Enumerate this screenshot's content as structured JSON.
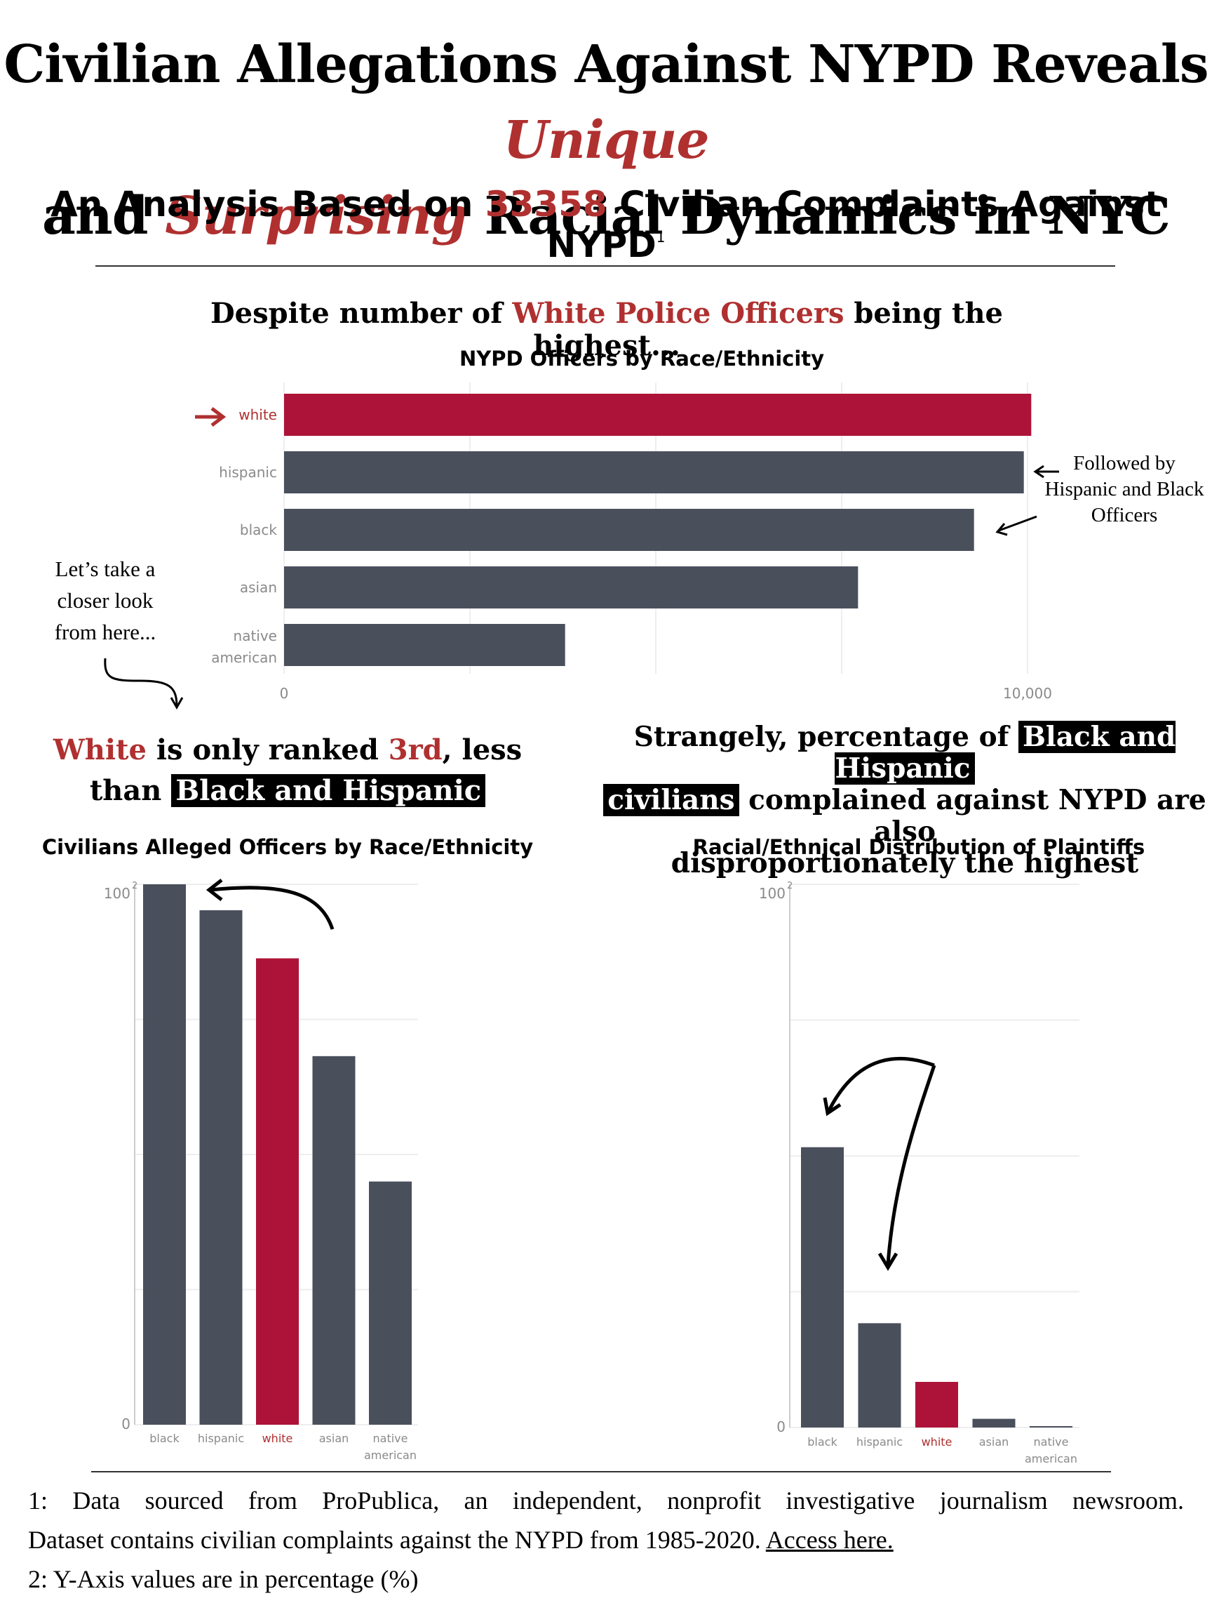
{
  "header": {
    "title_line1_a": "Civilian Allegations Against NYPD Reveals ",
    "title_line1_b": "Unique",
    "title_line2_a": "and ",
    "title_line2_b": "Surprising",
    "title_line2_c": " Racial Dynamics in NYC",
    "subtitle_a": "An Analysis Based on ",
    "subtitle_count": "33358",
    "subtitle_b": " Civilian Complaints Against NYPD",
    "subtitle_sup": "1"
  },
  "section1": {
    "headline_a": "Despite number of ",
    "headline_b": "White Police Officers",
    "headline_c": " being the highest...",
    "annot_right": [
      "Followed by",
      "Hispanic and Black",
      "Officers"
    ],
    "annot_left": [
      "Let’s take a",
      "closer look",
      "from here..."
    ]
  },
  "section2": {
    "headline_a": "White",
    "headline_b": " is only ranked ",
    "headline_c": "3rd",
    "headline_d": ", less",
    "headline_e": "than ",
    "headline_f": "Black and Hispanic"
  },
  "section3": {
    "headline_a": "Strangely, percentage of ",
    "headline_b": "Black and Hispanic",
    "headline_c": "civilians",
    "headline_d": " complained against NYPD are also",
    "headline_e": "disproportionately the highest"
  },
  "colors": {
    "highlight": "#ad1338",
    "bar": "#4a4f5c",
    "accent_text": "#b03030"
  },
  "chart_data": [
    {
      "type": "bar",
      "orientation": "horizontal",
      "title": "NYPD Officers by Race/Ethnicity",
      "categories": [
        "white",
        "hispanic",
        "black",
        "asian",
        "native american"
      ],
      "values": [
        10050,
        9950,
        9280,
        7720,
        3780
      ],
      "highlight": "white",
      "xlim": [
        0,
        10000
      ],
      "tick_labels": [
        "0",
        "10,000"
      ]
    },
    {
      "type": "bar",
      "title": "Civilians Alleged Officers by Race/Ethnicity",
      "categories": [
        "black",
        "hispanic",
        "white",
        "asian",
        "native american"
      ],
      "values": [
        100,
        95.2,
        86.3,
        68.2,
        45.0
      ],
      "highlight": "white",
      "ylim": [
        0,
        100
      ],
      "tick_labels": [
        "0",
        "100"
      ],
      "tick_sup": "2"
    },
    {
      "type": "bar",
      "title": "Racial/Ethnical Distribution of Plaintiffs",
      "categories": [
        "black",
        "hispanic",
        "white",
        "asian",
        "native american"
      ],
      "values": [
        51.6,
        19.2,
        8.4,
        1.6,
        0.2
      ],
      "highlight": "white",
      "ylim": [
        0,
        100
      ],
      "tick_labels": [
        "0",
        "100"
      ],
      "tick_sup": "2"
    }
  ],
  "footnotes": {
    "note1_a": "1: Data sourced from ProPublica, an independent, nonprofit investigative journalism newsroom.",
    "note1_b": "Dataset contains civilian complaints against the NYPD from 1985-2020. ",
    "note1_link": "Access here.",
    "note2": "2: Y-Axis values are in percentage (%)"
  }
}
